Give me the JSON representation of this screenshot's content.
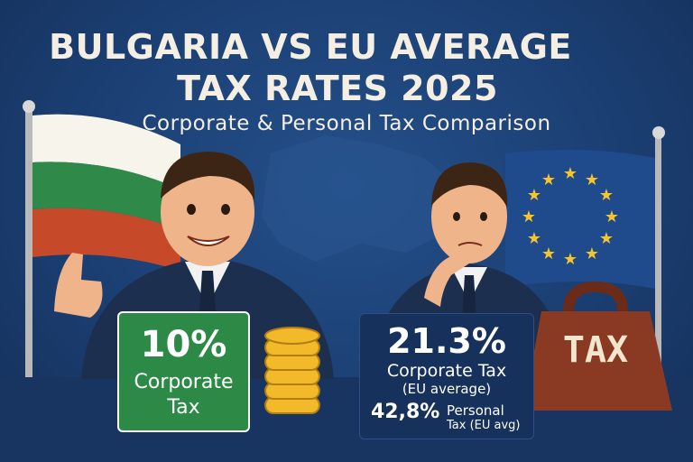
{
  "title": {
    "line1": "BULGARIA VS EU AVERAGE",
    "line2": "TAX RATES 2025",
    "subtitle": "Corporate & Personal Tax Comparison"
  },
  "bulgaria": {
    "corporate_value": "10%",
    "label_line1": "Corporate",
    "label_line2": "Tax",
    "flag_colors": [
      "#f7f4ec",
      "#2f8a4a",
      "#c64a2a"
    ]
  },
  "eu": {
    "corporate_value": "21.3%",
    "corporate_label": "Corporate Tax",
    "corporate_note": "(EU average)",
    "personal_value": "42,8%",
    "personal_label_line1": "Personal",
    "personal_label_line2": "Tax (EU avg)",
    "flag_color": "#1f4a8c",
    "star_color": "#f6c42b"
  },
  "weight": {
    "label": "TAX",
    "color": "#8a3a23"
  },
  "colors": {
    "background": "#1b3f73",
    "green_panel": "#2d8a46",
    "coin": "#f2b92b"
  }
}
